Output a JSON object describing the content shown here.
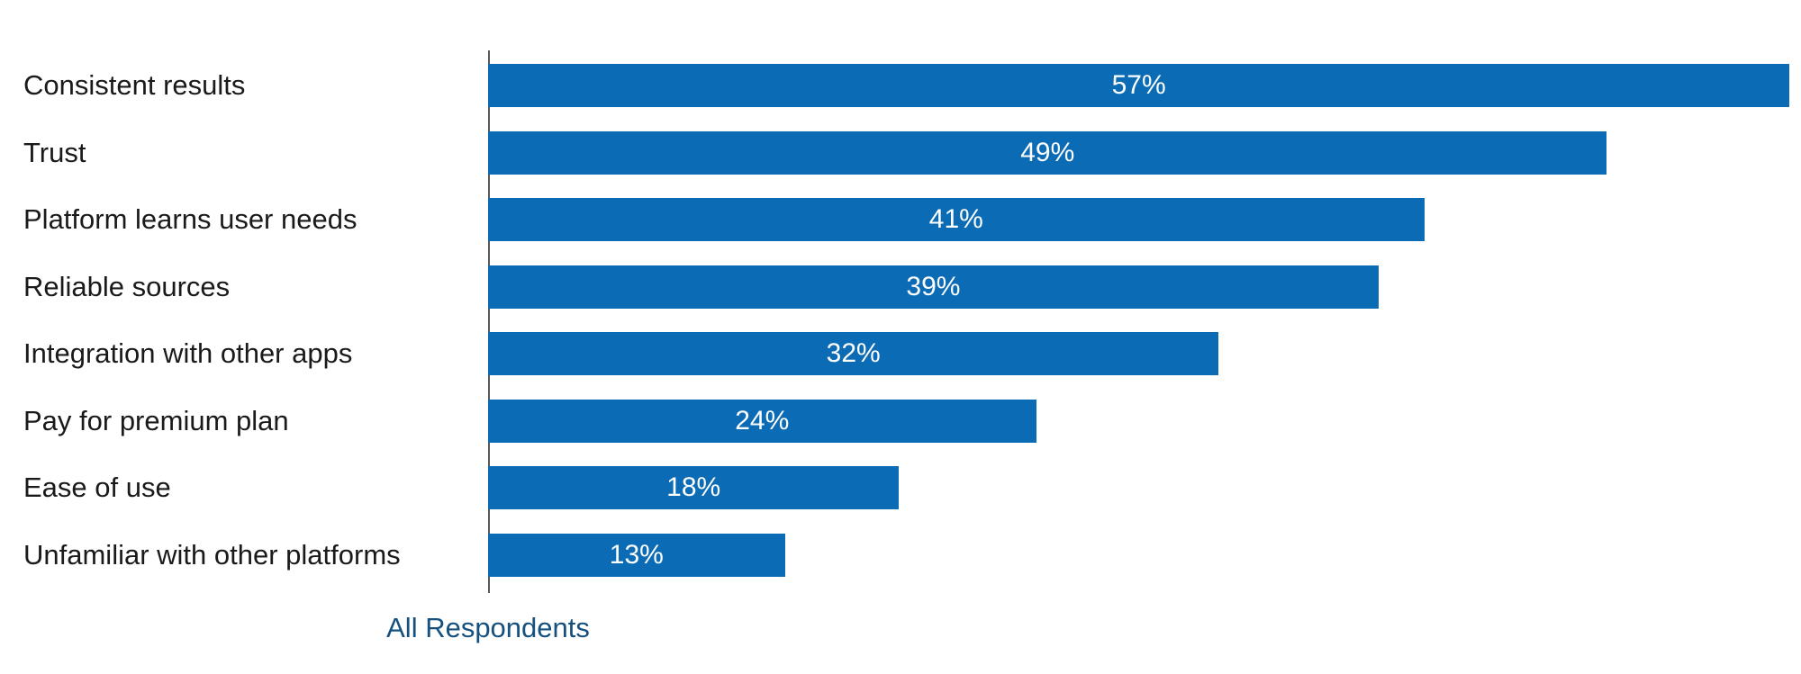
{
  "chart_data": {
    "type": "bar",
    "orientation": "horizontal",
    "title": "",
    "xlabel": "",
    "ylabel": "",
    "grid": false,
    "xlim": [
      0,
      57.5
    ],
    "categories": [
      "Consistent results",
      "Trust",
      "Platform learns user needs",
      "Reliable sources",
      "Integration with other apps",
      "Pay for premium plan",
      "Ease of use",
      "Unfamiliar with other platforms"
    ],
    "values": [
      57,
      49,
      41,
      39,
      32,
      24,
      18,
      13
    ],
    "value_labels": [
      "57%",
      "49%",
      "41%",
      "39%",
      "32%",
      "24%",
      "18%",
      "13%"
    ],
    "series_label": "All Respondents",
    "colors": {
      "bar": "#0B6CB5",
      "value_label": "#FFFFFF",
      "category_label": "#1A1A1A",
      "axis_line": "#595959",
      "series_label": "#15507E",
      "background": "#FFFFFF"
    },
    "legend_position": "bottom-left"
  }
}
